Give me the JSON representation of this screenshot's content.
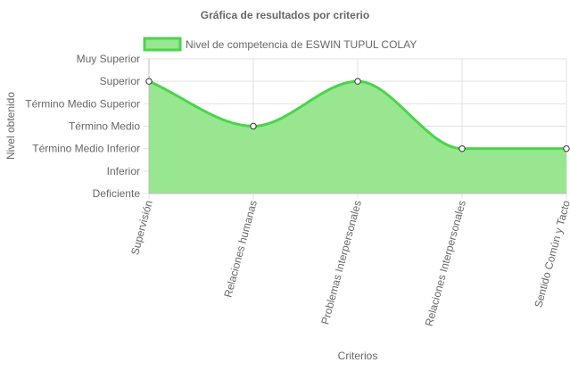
{
  "chart_data": {
    "type": "area",
    "title": "Gráfica de resultados por criterio",
    "xlabel": "Criterios",
    "ylabel": "Nivel obtenido",
    "legend_position": "top-center",
    "grid": true,
    "level_labels": [
      "Deficiente",
      "Inferior",
      "Término Medio Inferior",
      "Término Medio",
      "Término Medio Superior",
      "Superior",
      "Muy Superior"
    ],
    "ylim": [
      0,
      6
    ],
    "categories": [
      "Supervisión",
      "Relaciones humanas",
      "Problemas Interpersonales",
      "Relaciones Interpersonales",
      "Sentido Común y Tacto"
    ],
    "series": [
      {
        "name": "Nivel de competencia de ESWIN TUPUL COLAY",
        "values": [
          5,
          3,
          5,
          2,
          2
        ],
        "value_labels": [
          "Superior",
          "Término Medio",
          "Superior",
          "Término Medio Inferior",
          "Término Medio Inferior"
        ],
        "fill_color": "#98e690",
        "line_color": "#4cd44c"
      }
    ]
  }
}
